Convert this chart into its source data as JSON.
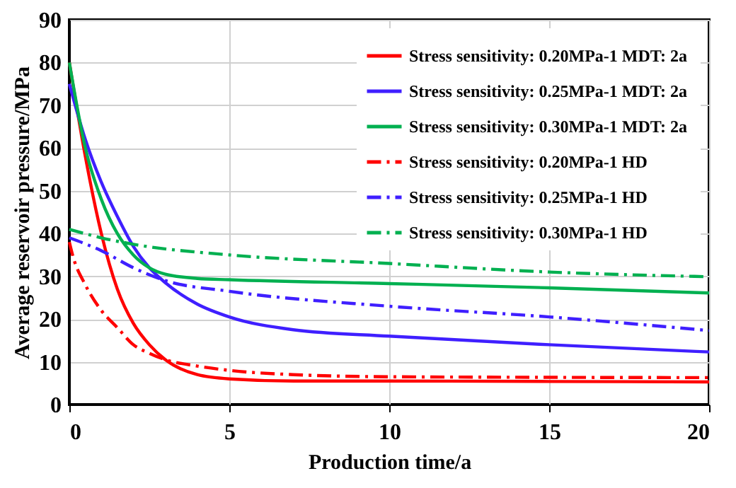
{
  "chart_data": {
    "type": "line",
    "xlabel": "Production time/a",
    "ylabel": "Average reservoir pressure/MPa",
    "xlim": [
      0,
      20
    ],
    "xticks": [
      0,
      5,
      10,
      15,
      20
    ],
    "ylim": [
      0,
      90
    ],
    "yticks": [
      0,
      10,
      20,
      30,
      40,
      50,
      60,
      70,
      80,
      90
    ],
    "grid": true,
    "legend": "top right",
    "marker": "none",
    "series": [
      {
        "name": "Stress sensitivity: 0.20MPa-1  MDT: 2a",
        "color": "#ff0000",
        "line_style": "solid",
        "x": [
          0,
          0.5,
          1,
          1.5,
          2,
          2.5,
          3,
          4,
          5,
          7,
          10,
          15,
          20
        ],
        "values": [
          80,
          58,
          40,
          27,
          19,
          14,
          10.5,
          7,
          6,
          5.5,
          5.5,
          5.4,
          5.3
        ]
      },
      {
        "name": "Stress sensitivity: 0.25MPa-1  MDT: 2a",
        "color": "#3f1fff",
        "line_style": "solid",
        "x": [
          0,
          0.5,
          1,
          1.5,
          2,
          2.5,
          3,
          4,
          5,
          7,
          10,
          15,
          20
        ],
        "values": [
          75,
          62,
          52,
          44,
          37,
          32,
          28.5,
          23.5,
          20.5,
          17.5,
          16,
          14,
          12.3
        ]
      },
      {
        "name": "Stress sensitivity: 0.30MPa-1  MDT: 2a",
        "color": "#00b050",
        "line_style": "solid",
        "x": [
          0,
          0.5,
          1,
          1.5,
          2,
          2.5,
          3,
          4,
          5,
          10,
          15,
          20
        ],
        "values": [
          80,
          60,
          48,
          40,
          35,
          32,
          30.5,
          29.5,
          29.2,
          28.3,
          27.3,
          26.1
        ]
      },
      {
        "name": "Stress sensitivity: 0.20MPa-1  HD",
        "color": "#ff0000",
        "line_style": "dashed",
        "x": [
          0,
          0.1,
          0.5,
          1,
          1.5,
          2,
          2.5,
          3,
          4,
          5,
          7,
          10,
          20
        ],
        "values": [
          38,
          35,
          28,
          22,
          18,
          14,
          12,
          10.5,
          9,
          8,
          7,
          6.5,
          6.3
        ]
      },
      {
        "name": "Stress sensitivity: 0.25MPa-1  HD",
        "color": "#3f1fff",
        "line_style": "dashed",
        "x": [
          0,
          1,
          2,
          3,
          5,
          10,
          15,
          20
        ],
        "values": [
          39,
          36,
          32,
          29,
          26.5,
          23,
          20.5,
          17.3
        ]
      },
      {
        "name": "Stress sensitivity: 0.30MPa-1  HD",
        "color": "#00b050",
        "line_style": "dashed",
        "x": [
          0,
          1,
          2,
          5,
          10,
          15,
          20
        ],
        "values": [
          41,
          39,
          37.5,
          35,
          33,
          31,
          29.9
        ]
      }
    ]
  }
}
